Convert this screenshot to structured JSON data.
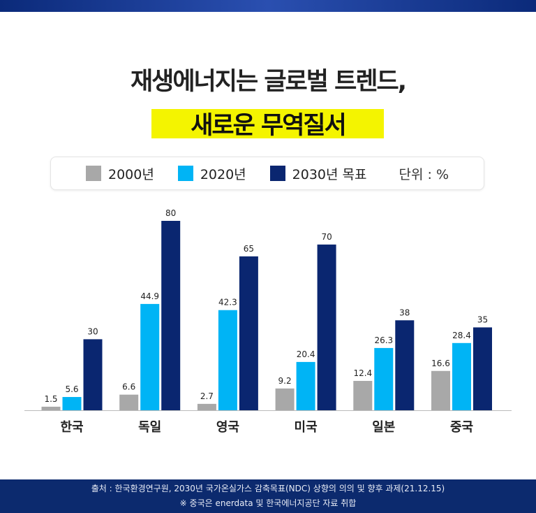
{
  "title_line1": "재생에너지는 글로벌 트렌드,",
  "title_line2": "새로운 무역질서",
  "legend": {
    "unit": "단위 : %"
  },
  "chart_data": {
    "type": "bar",
    "categories": [
      "한국",
      "독일",
      "영국",
      "미국",
      "일본",
      "중국"
    ],
    "series": [
      {
        "name": "2000년",
        "color": "#a8a8a8",
        "values": [
          1.5,
          6.6,
          2.7,
          9.2,
          12.4,
          16.6
        ]
      },
      {
        "name": "2020년",
        "color": "#00b4f5",
        "values": [
          5.6,
          44.9,
          42.3,
          20.4,
          26.3,
          28.4
        ]
      },
      {
        "name": "2030년 목표",
        "color": "#0a2670",
        "values": [
          30,
          80,
          65,
          70,
          38,
          35
        ]
      }
    ],
    "ylim": [
      0,
      80
    ],
    "ylabel": "단위 : %",
    "grid": false
  },
  "footer": {
    "source": "출처 : 한국환경연구원, 2030년 국가온실가스 감축목표(NDC) 상향의 의의 및 향후 과제(21.12.15)",
    "note": "※ 중국은 enerdata 및 한국에너지공단 자료 취합"
  }
}
